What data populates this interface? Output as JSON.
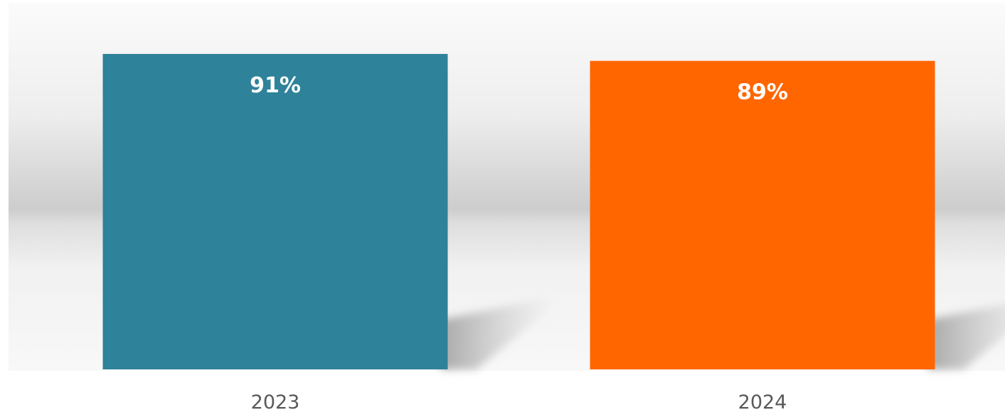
{
  "chart_data": {
    "type": "bar",
    "categories": [
      "2023",
      "2024"
    ],
    "values": [
      91,
      89
    ],
    "value_labels": [
      "91%",
      "89%"
    ],
    "bar_colors": [
      "#2E8299",
      "#FF6600"
    ],
    "title": "",
    "xlabel": "",
    "ylabel": "",
    "ylim": [
      0,
      100
    ],
    "grid": false,
    "legend": "none"
  }
}
